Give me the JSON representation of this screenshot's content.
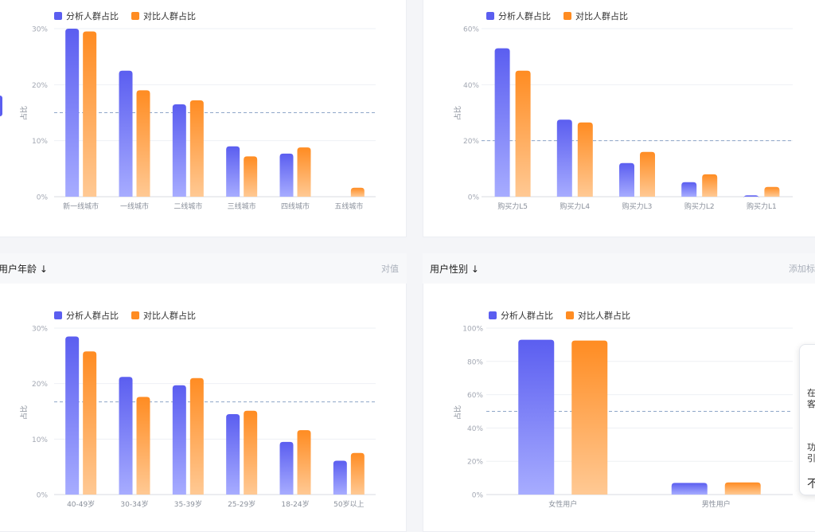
{
  "panels": [
    {
      "header": null
    },
    {
      "header": null
    },
    {
      "header": {
        "title": "用户年龄",
        "right": "对值"
      }
    },
    {
      "header": {
        "title": "用户性别",
        "right": "添加标"
      }
    }
  ],
  "legend": {
    "analysis": "分析人群占比",
    "compare": "对比人群占比",
    "colors": {
      "analysis": "#5b5ef0",
      "compare": "#ff8c22"
    }
  },
  "ylabel": "占比",
  "chart_data": [
    {
      "type": "bar",
      "categories": [
        "新一线城市",
        "一线城市",
        "二线城市",
        "三线城市",
        "四线城市",
        "五线城市"
      ],
      "series": [
        {
          "name": "分析人群占比",
          "values": [
            30,
            22.5,
            16.5,
            9,
            7.7,
            0
          ]
        },
        {
          "name": "对比人群占比",
          "values": [
            29.5,
            19,
            17.2,
            7.2,
            8.8,
            1.6
          ]
        }
      ],
      "yticks": [
        "0%",
        "10%",
        "20%",
        "30%"
      ],
      "ylim": [
        0,
        30
      ],
      "reference_line": 15
    },
    {
      "type": "bar",
      "categories": [
        "购买力L5",
        "购买力L4",
        "购买力L3",
        "购买力L2",
        "购买力L1"
      ],
      "series": [
        {
          "name": "分析人群占比",
          "values": [
            53,
            27.5,
            12,
            5.2,
            0.5
          ]
        },
        {
          "name": "对比人群占比",
          "values": [
            45,
            26.5,
            16,
            8,
            3.5
          ]
        }
      ],
      "yticks": [
        "0%",
        "20%",
        "40%",
        "60%"
      ],
      "ylim": [
        0,
        60
      ],
      "reference_line": 20
    },
    {
      "type": "bar",
      "categories": [
        "40-49岁",
        "30-34岁",
        "35-39岁",
        "25-29岁",
        "18-24岁",
        "50岁以上"
      ],
      "series": [
        {
          "name": "分析人群占比",
          "values": [
            28.5,
            21.2,
            19.7,
            14.5,
            9.5,
            6.1
          ]
        },
        {
          "name": "对比人群占比",
          "values": [
            25.8,
            17.6,
            21,
            15.1,
            11.6,
            7.5
          ]
        }
      ],
      "yticks": [
        "0%",
        "10%",
        "20%",
        "30%"
      ],
      "ylim": [
        0,
        30
      ],
      "reference_line": 16.7
    },
    {
      "type": "bar",
      "categories": [
        "女性用户",
        "男性用户"
      ],
      "series": [
        {
          "name": "分析人群占比",
          "values": [
            93,
            7
          ]
        },
        {
          "name": "对比人群占比",
          "values": [
            92.5,
            7.3
          ]
        }
      ],
      "yticks": [
        "0%",
        "20%",
        "40%",
        "60%",
        "80%",
        "100%"
      ],
      "ylim": [
        0,
        100
      ],
      "reference_line": 50
    }
  ],
  "popup": {
    "lines": [
      "在",
      "客",
      "功",
      "引",
      "不"
    ]
  }
}
